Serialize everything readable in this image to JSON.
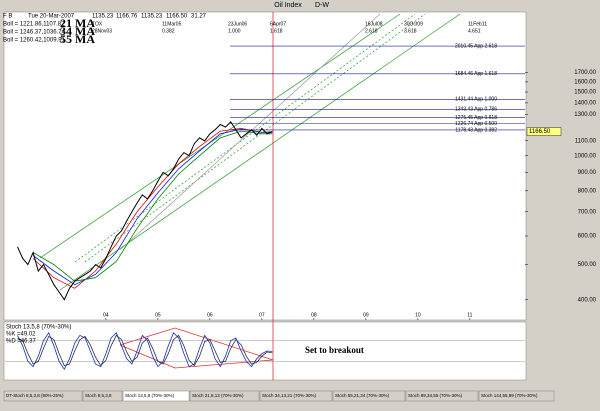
{
  "header": {
    "date": "Tue 20-Mar-2007",
    "open": "1135.23",
    "high": "1166.76",
    "low": "1135.23",
    "close": "1166.50",
    "change": "31.27",
    "title": "Oil Index",
    "period": "D-W"
  },
  "legend": [
    {
      "text": "Boll = 1221.86,1107.82",
      "name": "21 MA"
    },
    {
      "text": "Boll = 1246.37,1036.74",
      "name": "34 MA"
    },
    {
      "text": "Boll = 1260.42,1009.91",
      "name": "55 MA"
    }
  ],
  "time_projections": [
    {
      "date": "TOX",
      "ratio": "28Nov03"
    },
    {
      "date": "11Mar05",
      "ratio": "0.382"
    },
    {
      "date": "23Jun06",
      "ratio": "1.000"
    },
    {
      "date": "6Apr07",
      "ratio": "1.618"
    },
    {
      "date": "16Jul08",
      "ratio": "2.618"
    },
    {
      "date": "30Oct09",
      "ratio": "3.618"
    },
    {
      "date": "11Feb11",
      "ratio": "4.651"
    }
  ],
  "chart_data": [
    {
      "type": "line",
      "log_scale": true,
      "xlim": [
        2002.06,
        2012.06
      ],
      "xticks": [
        {
          "value": 2004,
          "label": "04"
        },
        {
          "value": 2005,
          "label": "05"
        },
        {
          "value": 2006,
          "label": "06"
        },
        {
          "value": 2007,
          "label": "07"
        },
        {
          "value": 2008,
          "label": "08"
        },
        {
          "value": 2009,
          "label": "09"
        },
        {
          "value": 2010,
          "label": "10"
        },
        {
          "value": 2011,
          "label": "11"
        }
      ],
      "ylim": [
        356,
        2465
      ],
      "yticks": [
        {
          "value": 1700,
          "label": "1700.00"
        },
        {
          "value": 1600,
          "label": "1600.00"
        },
        {
          "value": 1500,
          "label": "1500.00"
        },
        {
          "value": 1400,
          "label": "1400.00"
        },
        {
          "value": 1300,
          "label": "1300.00"
        },
        {
          "value": 1100,
          "label": "1100.00"
        },
        {
          "value": 1000,
          "label": "1000.00"
        },
        {
          "value": 900,
          "label": "900.00"
        },
        {
          "value": 800,
          "label": "800.00"
        },
        {
          "value": 700,
          "label": "700.00"
        },
        {
          "value": 600,
          "label": "600.00"
        },
        {
          "value": 500,
          "label": "500.00"
        },
        {
          "value": 400,
          "label": "400.00"
        }
      ],
      "levels": [
        {
          "value": 2010.45,
          "label": "2010.45 App 2.618"
        },
        {
          "value": 1684.46,
          "label": "1684.46 App 1.618"
        },
        {
          "value": 1431.44,
          "label": "1431.44 App 1.000"
        },
        {
          "value": 1343.43,
          "label": "1343.43 App 0.786"
        },
        {
          "value": 1275.45,
          "label": "1275.45 App 0.618"
        },
        {
          "value": 1226.74,
          "label": "1226.74 App 0.500"
        },
        {
          "value": 1178.43,
          "label": "1178.43 App 0.382"
        }
      ],
      "price": {
        "color": "#000000",
        "x": [
          2002.3,
          2002.4,
          2002.5,
          2002.6,
          2002.7,
          2002.8,
          2002.9,
          2003.0,
          2003.1,
          2003.2,
          2003.3,
          2003.4,
          2003.5,
          2003.6,
          2003.7,
          2003.8,
          2003.9,
          2004.0,
          2004.1,
          2004.2,
          2004.3,
          2004.4,
          2004.5,
          2004.6,
          2004.7,
          2004.8,
          2004.9,
          2005.0,
          2005.1,
          2005.2,
          2005.3,
          2005.4,
          2005.5,
          2005.6,
          2005.7,
          2005.8,
          2005.9,
          2006.0,
          2006.1,
          2006.2,
          2006.3,
          2006.4,
          2006.5,
          2006.6,
          2006.7,
          2006.8,
          2006.9,
          2007.0,
          2007.1,
          2007.2
        ],
        "values": [
          560,
          520,
          500,
          540,
          480,
          500,
          470,
          440,
          420,
          400,
          430,
          450,
          460,
          470,
          480,
          500,
          490,
          520,
          560,
          600,
          620,
          660,
          700,
          740,
          780,
          760,
          800,
          850,
          900,
          880,
          920,
          980,
          1020,
          1000,
          1080,
          1120,
          1100,
          1150,
          1180,
          1220,
          1200,
          1240,
          1180,
          1120,
          1150,
          1180,
          1140,
          1190,
          1150,
          1166.5
        ]
      },
      "ma_x": [
        2002.6,
        2003.0,
        2003.4,
        2003.8,
        2004.2,
        2004.6,
        2005.0,
        2005.4,
        2005.8,
        2006.2,
        2006.6,
        2007.0,
        2007.2
      ],
      "series": [
        {
          "name": "21 MA",
          "color": "#e00000",
          "values": [
            520,
            460,
            430,
            480,
            570,
            700,
            820,
            950,
            1060,
            1170,
            1190,
            1160,
            1165
          ]
        },
        {
          "name": "34 MA",
          "color": "#0020e0",
          "values": [
            530,
            480,
            440,
            470,
            540,
            670,
            790,
            920,
            1030,
            1150,
            1185,
            1160,
            1160
          ]
        },
        {
          "name": "55 MA",
          "color": "#008000",
          "values": [
            540,
            500,
            450,
            460,
            510,
            630,
            760,
            890,
            1000,
            1120,
            1170,
            1150,
            1150
          ]
        }
      ]
    },
    {
      "type": "stoch",
      "title": "Stoch 13,5,8 (70%-30%)",
      "ylim": [
        0,
        100
      ],
      "bands": [
        30,
        70
      ],
      "k_label": "%K =49.02",
      "d_label": "%D =46.37",
      "annotation": "Set to breakout",
      "series": [
        {
          "name": "%K",
          "color": "#1030d0",
          "values": [
            80,
            60,
            30,
            20,
            40,
            70,
            85,
            60,
            30,
            15,
            35,
            65,
            80,
            75,
            50,
            25,
            20,
            45,
            75,
            85,
            60,
            35,
            25,
            50,
            80,
            70,
            40,
            20,
            30,
            60,
            85,
            75,
            45,
            20,
            25,
            55,
            80,
            65,
            35,
            20,
            40,
            70,
            75,
            50,
            30,
            20,
            35,
            45,
            50,
            49.02
          ]
        },
        {
          "name": "%D",
          "color": "#303030",
          "values": [
            75,
            70,
            45,
            25,
            30,
            55,
            78,
            72,
            45,
            22,
            25,
            50,
            72,
            78,
            62,
            38,
            22,
            32,
            60,
            80,
            72,
            48,
            30,
            38,
            65,
            75,
            55,
            30,
            25,
            45,
            72,
            80,
            60,
            32,
            22,
            40,
            68,
            72,
            50,
            28,
            30,
            55,
            72,
            62,
            40,
            25,
            28,
            40,
            48,
            46.37
          ]
        }
      ]
    }
  ],
  "tabs": [
    "DT-Stoch 8,5,3,8 (90%-25%)",
    "Stoch 8,5,3,8",
    "Stoch 13,5,8 (70%-30%)",
    "Stoch 21,8,13 (70%-30%)",
    "Stoch 34,13,21 (70%-30%)",
    "Stoch 55,21,34 (70%-30%)",
    "Stoch 89,34,55 (70%-30%)",
    "Stoch 144,55,89 (70%-30%)"
  ]
}
